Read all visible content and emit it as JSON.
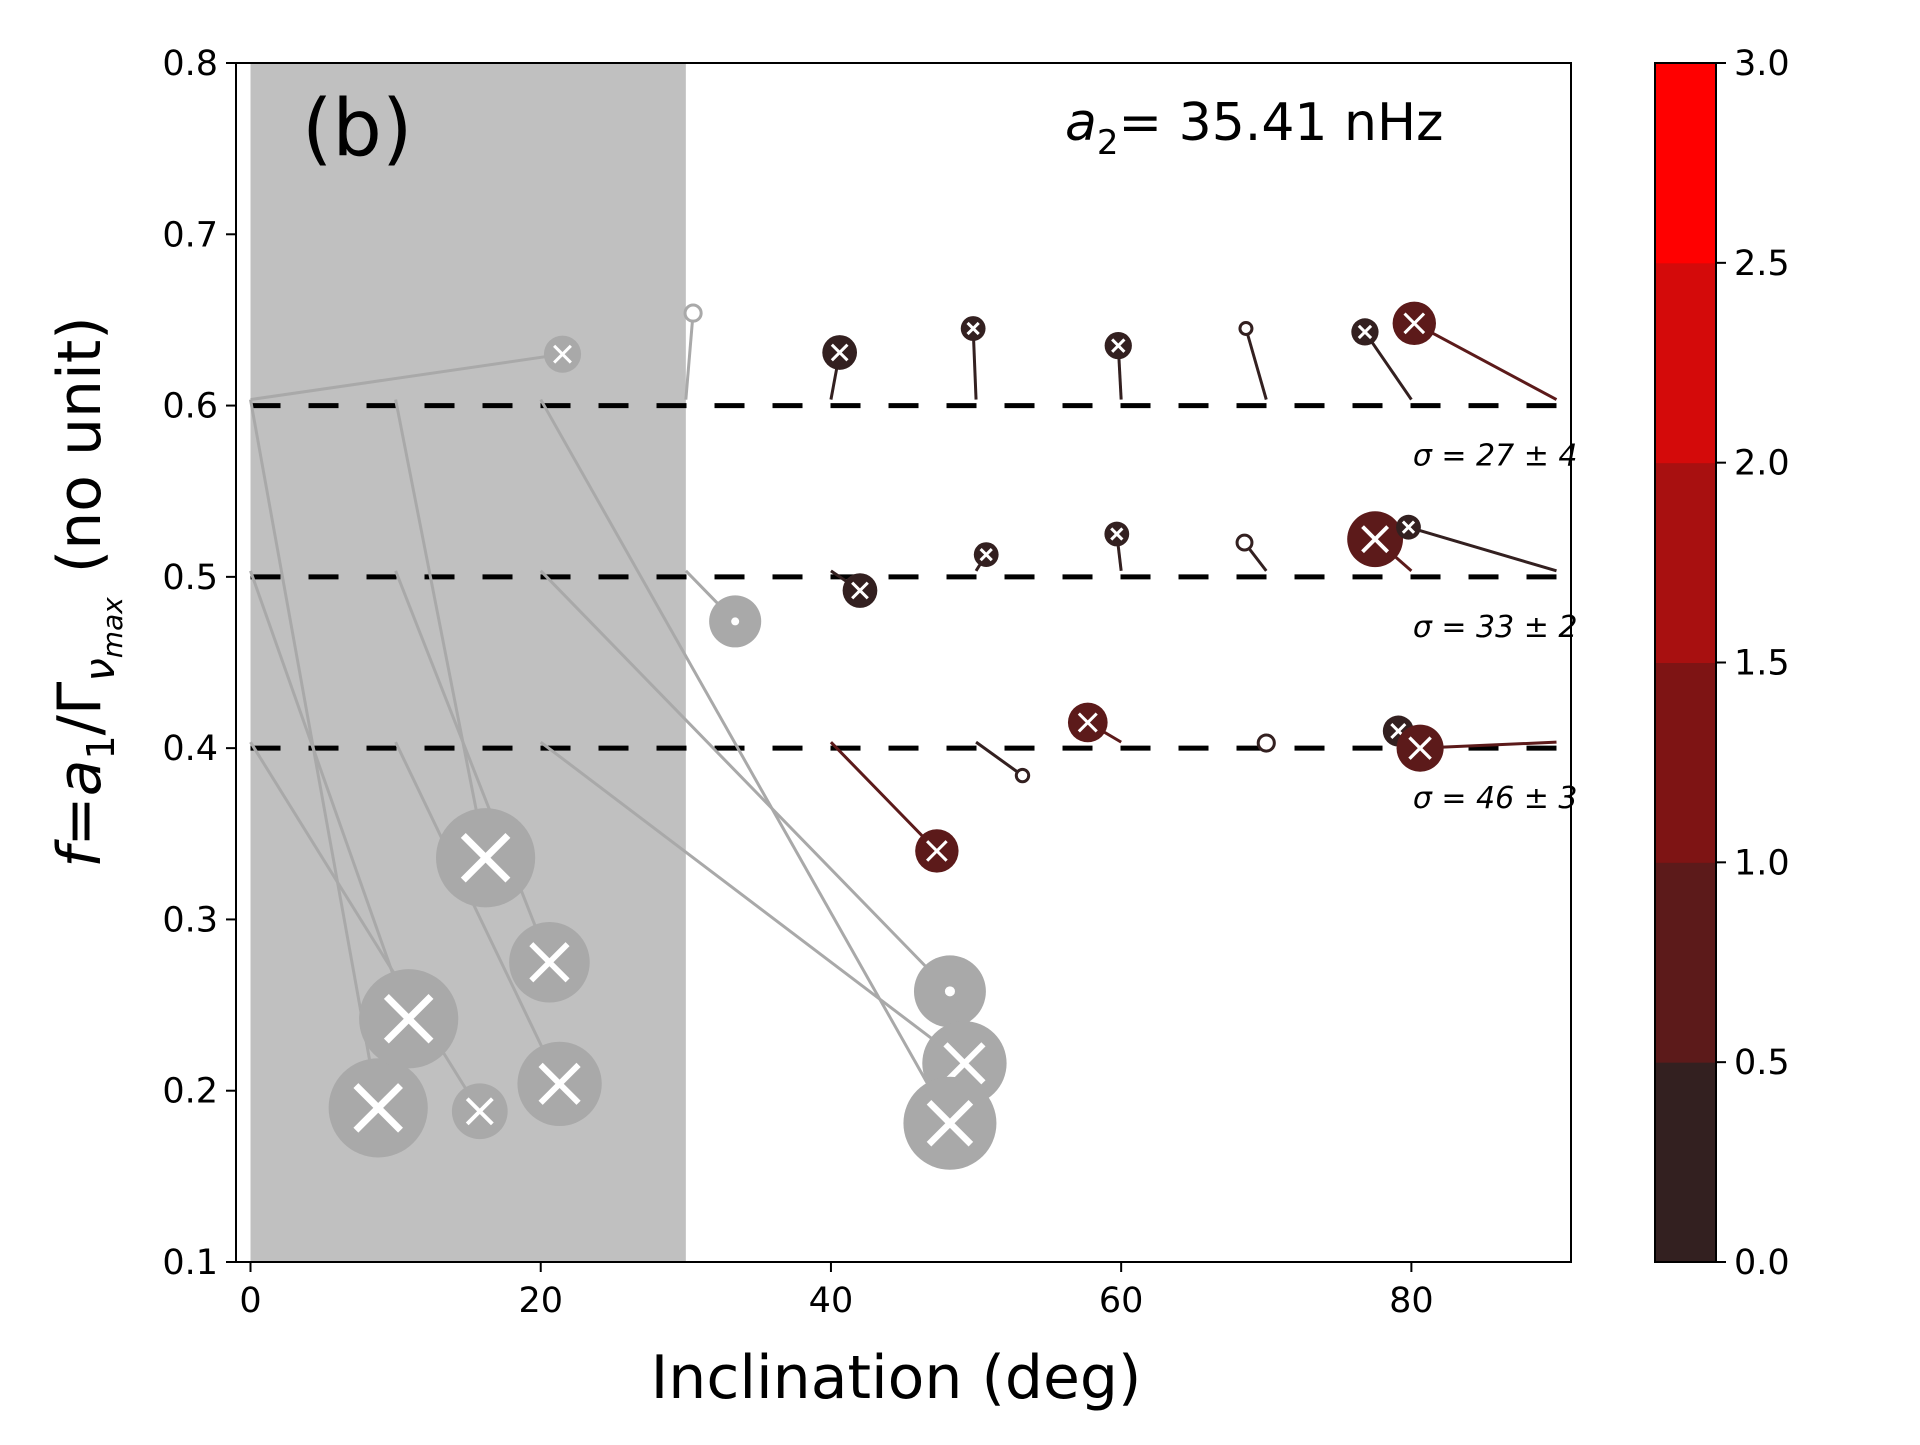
{
  "chart_data": {
    "type": "scatter",
    "panel_label": "(b)",
    "annotation": {
      "a_symbol": "a",
      "a_sub": "2",
      "text": "= 35.41 nHz"
    },
    "xlabel": "Inclination (deg)",
    "ylabel": {
      "f": "f",
      "eq": "=",
      "a": "a",
      "a_sub": "1",
      "slash": "/Γ",
      "nu": "ν",
      "nu_sub": "max",
      "unit": "(no unit)"
    },
    "xlim": [
      -1,
      91
    ],
    "ylim": [
      0.1,
      0.8
    ],
    "xticks": [
      "0",
      "20",
      "40",
      "60",
      "80"
    ],
    "xtick_values": [
      0,
      20,
      40,
      60,
      80
    ],
    "yticks": [
      "0.1",
      "0.2",
      "0.3",
      "0.4",
      "0.5",
      "0.6",
      "0.7",
      "0.8"
    ],
    "ytick_values": [
      0.1,
      0.2,
      0.3,
      0.4,
      0.5,
      0.6,
      0.7,
      0.8
    ],
    "shaded_region": {
      "x": [
        0,
        30
      ],
      "color": "#c0c0c0"
    },
    "reference_lines": [
      {
        "y": 0.6,
        "sigma_label": "σ = 27 ± 4"
      },
      {
        "y": 0.5,
        "sigma_label": "σ = 33 ± 2"
      },
      {
        "y": 0.4,
        "sigma_label": "σ = 46 ± 3"
      }
    ],
    "colorbar": {
      "ticks": [
        "0.0",
        "0.5",
        "1.0",
        "1.5",
        "2.0",
        "2.5",
        "3.0"
      ],
      "tick_values": [
        0,
        0.5,
        1,
        1.5,
        2,
        2.5,
        3
      ],
      "range": [
        0,
        3
      ],
      "colors": [
        "#332020",
        "#5c1a1a",
        "#7e1414",
        "#a81010",
        "#d40a0a",
        "#ff0000"
      ]
    },
    "points": [
      {
        "true_x": 0,
        "true_y": 0.6,
        "x": 21.5,
        "y": 0.63,
        "size": 0.3,
        "value": 0.2,
        "marker": "x",
        "in_shade": true
      },
      {
        "true_x": 30,
        "true_y": 0.6,
        "x": 30.5,
        "y": 0.654,
        "size": 0.13,
        "value": 0.2,
        "marker": "dot",
        "in_shade": true
      },
      {
        "true_x": 40,
        "true_y": 0.6,
        "x": 40.6,
        "y": 0.631,
        "size": 0.28,
        "value": 0.2,
        "marker": "x",
        "in_shade": false
      },
      {
        "true_x": 50,
        "true_y": 0.6,
        "x": 49.8,
        "y": 0.645,
        "size": 0.2,
        "value": 0.2,
        "marker": "x",
        "in_shade": false
      },
      {
        "true_x": 60,
        "true_y": 0.6,
        "x": 59.8,
        "y": 0.635,
        "size": 0.22,
        "value": 0.2,
        "marker": "x",
        "in_shade": false
      },
      {
        "true_x": 70,
        "true_y": 0.6,
        "x": 68.6,
        "y": 0.645,
        "size": 0.07,
        "value": 0.2,
        "marker": "dot",
        "in_shade": false
      },
      {
        "true_x": 80,
        "true_y": 0.6,
        "x": 76.8,
        "y": 0.643,
        "size": 0.22,
        "value": 0.2,
        "marker": "x",
        "in_shade": false
      },
      {
        "true_x": 90,
        "true_y": 0.6,
        "x": 80.2,
        "y": 0.648,
        "size": 0.35,
        "value": 0.6,
        "marker": "x",
        "in_shade": false
      },
      {
        "true_x": 0,
        "true_y": 0.6,
        "x": 8.8,
        "y": 0.19,
        "size": 0.8,
        "value": 0.2,
        "marker": "x",
        "in_shade": true
      },
      {
        "true_x": 10,
        "true_y": 0.6,
        "x": 16.2,
        "y": 0.336,
        "size": 0.8,
        "value": 0.2,
        "marker": "x",
        "in_shade": true
      },
      {
        "true_x": 40,
        "true_y": 0.5,
        "x": 42.0,
        "y": 0.492,
        "size": 0.28,
        "value": 0.2,
        "marker": "x",
        "in_shade": false
      },
      {
        "true_x": 50,
        "true_y": 0.5,
        "x": 50.7,
        "y": 0.513,
        "size": 0.2,
        "value": 0.2,
        "marker": "x",
        "in_shade": false
      },
      {
        "true_x": 60,
        "true_y": 0.5,
        "x": 59.7,
        "y": 0.525,
        "size": 0.2,
        "value": 0.2,
        "marker": "x",
        "in_shade": false
      },
      {
        "true_x": 70,
        "true_y": 0.5,
        "x": 68.5,
        "y": 0.52,
        "size": 0.12,
        "value": 0.2,
        "marker": "dot",
        "in_shade": false
      },
      {
        "true_x": 80,
        "true_y": 0.5,
        "x": 77.5,
        "y": 0.522,
        "size": 0.45,
        "value": 0.8,
        "marker": "x",
        "in_shade": false
      },
      {
        "true_x": 90,
        "true_y": 0.5,
        "x": 79.8,
        "y": 0.529,
        "size": 0.2,
        "value": 0.2,
        "marker": "x",
        "in_shade": false
      },
      {
        "true_x": 30,
        "true_y": 0.5,
        "x": 33.4,
        "y": 0.474,
        "size": 0.42,
        "value": 0.2,
        "marker": "dot",
        "in_shade": true
      },
      {
        "true_x": 0,
        "true_y": 0.5,
        "x": 10.9,
        "y": 0.242,
        "size": 0.8,
        "value": 0.2,
        "marker": "x",
        "in_shade": true
      },
      {
        "true_x": 10,
        "true_y": 0.5,
        "x": 20.6,
        "y": 0.275,
        "size": 0.65,
        "value": 0.2,
        "marker": "x",
        "in_shade": true
      },
      {
        "true_x": 20,
        "true_y": 0.5,
        "x": 48.2,
        "y": 0.258,
        "size": 0.58,
        "value": 0.2,
        "marker": "dot",
        "in_shade": true
      },
      {
        "true_x": 40,
        "true_y": 0.4,
        "x": 47.3,
        "y": 0.34,
        "size": 0.35,
        "value": 0.8,
        "marker": "x",
        "in_shade": false
      },
      {
        "true_x": 50,
        "true_y": 0.4,
        "x": 53.2,
        "y": 0.384,
        "size": 0.1,
        "value": 0.2,
        "marker": "dot",
        "in_shade": false
      },
      {
        "true_x": 60,
        "true_y": 0.4,
        "x": 57.7,
        "y": 0.415,
        "size": 0.32,
        "value": 0.8,
        "marker": "x",
        "in_shade": false
      },
      {
        "true_x": 70,
        "true_y": 0.4,
        "x": 70.0,
        "y": 0.403,
        "size": 0.13,
        "value": 0.2,
        "marker": "dot",
        "in_shade": false
      },
      {
        "true_x": 80,
        "true_y": 0.4,
        "x": 79.1,
        "y": 0.41,
        "size": 0.25,
        "value": 0.2,
        "marker": "x",
        "in_shade": false
      },
      {
        "true_x": 90,
        "true_y": 0.4,
        "x": 80.6,
        "y": 0.4,
        "size": 0.38,
        "value": 0.8,
        "marker": "x",
        "in_shade": false
      },
      {
        "true_x": 0,
        "true_y": 0.4,
        "x": 15.8,
        "y": 0.188,
        "size": 0.45,
        "value": 0.2,
        "marker": "x",
        "in_shade": true
      },
      {
        "true_x": 10,
        "true_y": 0.4,
        "x": 21.3,
        "y": 0.204,
        "size": 0.68,
        "value": 0.2,
        "marker": "x",
        "in_shade": true
      },
      {
        "true_x": 20,
        "true_y": 0.4,
        "x": 49.2,
        "y": 0.216,
        "size": 0.68,
        "value": 0.2,
        "marker": "x",
        "in_shade": true
      },
      {
        "true_x": 20,
        "true_y": 0.6,
        "x": 48.2,
        "y": 0.181,
        "size": 0.75,
        "value": 0.2,
        "marker": "x",
        "in_shade": true
      }
    ]
  }
}
